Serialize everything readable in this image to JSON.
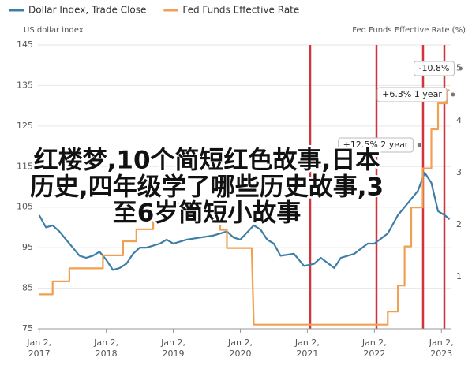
{
  "chart_data": {
    "type": "line",
    "ylabel": "US dollar index",
    "y2label": "Fed Funds Effective Rate (%)",
    "xlim": [
      2016.98,
      2023.15
    ],
    "xticks": [
      {
        "value": 2017,
        "label": "Jan 2, 2017"
      },
      {
        "value": 2018,
        "label": "Jan 2, 2018"
      },
      {
        "value": 2019,
        "label": "Jan 2, 2019"
      },
      {
        "value": 2020,
        "label": "Jan 2, 2020"
      },
      {
        "value": 2021,
        "label": "Jan 2, 2021"
      },
      {
        "value": 2022,
        "label": "Jan 2, 2022"
      },
      {
        "value": 2023,
        "label": "Jan 2, 2023"
      }
    ],
    "ylim": [
      75,
      145
    ],
    "yticks": [
      75,
      85,
      95,
      105,
      115,
      125,
      135,
      145
    ],
    "y2lim": [
      0,
      5.45
    ],
    "y2ticks": [
      1,
      2,
      3,
      4,
      5
    ],
    "grid": true,
    "series": [
      {
        "name": "Dollar Index, Trade Close",
        "color": "#3d7ea6",
        "x": [
          2017.0,
          2017.1,
          2017.2,
          2017.3,
          2017.4,
          2017.5,
          2017.6,
          2017.7,
          2017.8,
          2017.9,
          2018.0,
          2018.1,
          2018.2,
          2018.3,
          2018.4,
          2018.5,
          2018.6,
          2018.7,
          2018.8,
          2018.9,
          2019.0,
          2019.2,
          2019.4,
          2019.6,
          2019.8,
          2019.9,
          2020.0,
          2020.2,
          2020.3,
          2020.4,
          2020.5,
          2020.6,
          2020.8,
          2020.95,
          2021.1,
          2021.2,
          2021.4,
          2021.5,
          2021.7,
          2021.9,
          2022.0,
          2022.2,
          2022.35,
          2022.5,
          2022.65,
          2022.75,
          2022.85,
          2022.95,
          2023.05,
          2023.12
        ],
        "values": [
          103,
          100,
          100.5,
          99,
          97,
          95,
          93,
          92.5,
          93,
          94,
          92,
          89.5,
          90,
          91,
          93.5,
          95,
          95,
          95.5,
          96,
          97,
          96,
          97,
          97.5,
          98,
          99,
          97.5,
          97,
          100.5,
          99.5,
          97,
          96,
          93,
          93.5,
          90.5,
          91,
          92.5,
          90,
          92.5,
          93.5,
          96,
          96,
          98.5,
          103,
          106,
          109,
          113.5,
          111,
          104,
          103,
          102
        ]
      },
      {
        "name": "Fed Funds Effective Rate",
        "color": "#f0a050",
        "axis": "y2",
        "x": [
          2017.0,
          2017.2,
          2017.2,
          2017.45,
          2017.45,
          2017.95,
          2017.95,
          2018.25,
          2018.25,
          2018.45,
          2018.45,
          2018.7,
          2018.7,
          2018.97,
          2018.97,
          2019.55,
          2019.55,
          2019.7,
          2019.7,
          2019.8,
          2019.8,
          2020.17,
          2020.2,
          2022.2,
          2022.2,
          2022.35,
          2022.35,
          2022.45,
          2022.45,
          2022.55,
          2022.55,
          2022.72,
          2022.72,
          2022.85,
          2022.85,
          2022.95,
          2022.95,
          2023.08,
          2023.08,
          2023.12
        ],
        "values": [
          0.66,
          0.66,
          0.91,
          0.91,
          1.16,
          1.16,
          1.41,
          1.41,
          1.68,
          1.68,
          1.91,
          1.91,
          2.18,
          2.18,
          2.4,
          2.4,
          2.13,
          2.13,
          1.9,
          1.9,
          1.55,
          1.55,
          0.08,
          0.08,
          0.33,
          0.33,
          0.83,
          0.83,
          1.58,
          1.58,
          2.33,
          2.33,
          3.08,
          3.08,
          3.83,
          3.83,
          4.33,
          4.33,
          4.58,
          4.58
        ]
      }
    ],
    "annotations": [
      "-10.8%",
      "+6.3% 1 year",
      "+12.5% 2 year"
    ]
  },
  "overlay": [
    "红楼梦,10个简短红色故事,日本",
    "历史,四年级学了哪些历史故事,3",
    "至6岁简短小故事"
  ]
}
